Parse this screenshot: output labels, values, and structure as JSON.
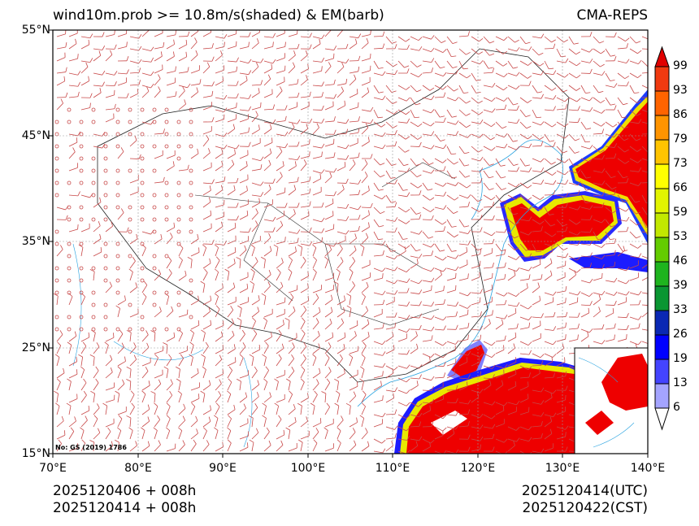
{
  "title": {
    "left": "wind10m.prob >= 10.8m/s(shaded) & EM(barb)",
    "right": "CMA-REPS"
  },
  "axes": {
    "y_ticks": [
      "55°N",
      "45°N",
      "35°N",
      "25°N",
      "15°N"
    ],
    "x_ticks": [
      "70°E",
      "80°E",
      "90°E",
      "100°E",
      "110°E",
      "120°E",
      "130°E",
      "140°E"
    ],
    "lon_range": [
      70,
      140
    ],
    "lat_range": [
      15,
      55
    ]
  },
  "watermark": "No: GS (2019) 1786",
  "colorbar": {
    "levels": [
      "99",
      "93",
      "86",
      "79",
      "73",
      "66",
      "59",
      "53",
      "46",
      "39",
      "33",
      "26",
      "19",
      "13",
      "6"
    ],
    "colors": [
      "#e00000",
      "#f03a10",
      "#ff6400",
      "#ff9400",
      "#ffc400",
      "#ffff00",
      "#e2f400",
      "#c2e800",
      "#64cc00",
      "#1eb41e",
      "#0a9632",
      "#0a28b4",
      "#0000ff",
      "#4444ff",
      "#a4a4ff",
      "#ffffff"
    ]
  },
  "footer": {
    "init_line": "2025120406  +  008h",
    "local_line": "2025120414  +  008h",
    "utc": "2025120414(UTC)",
    "cst": "2025120422(CST)"
  }
}
